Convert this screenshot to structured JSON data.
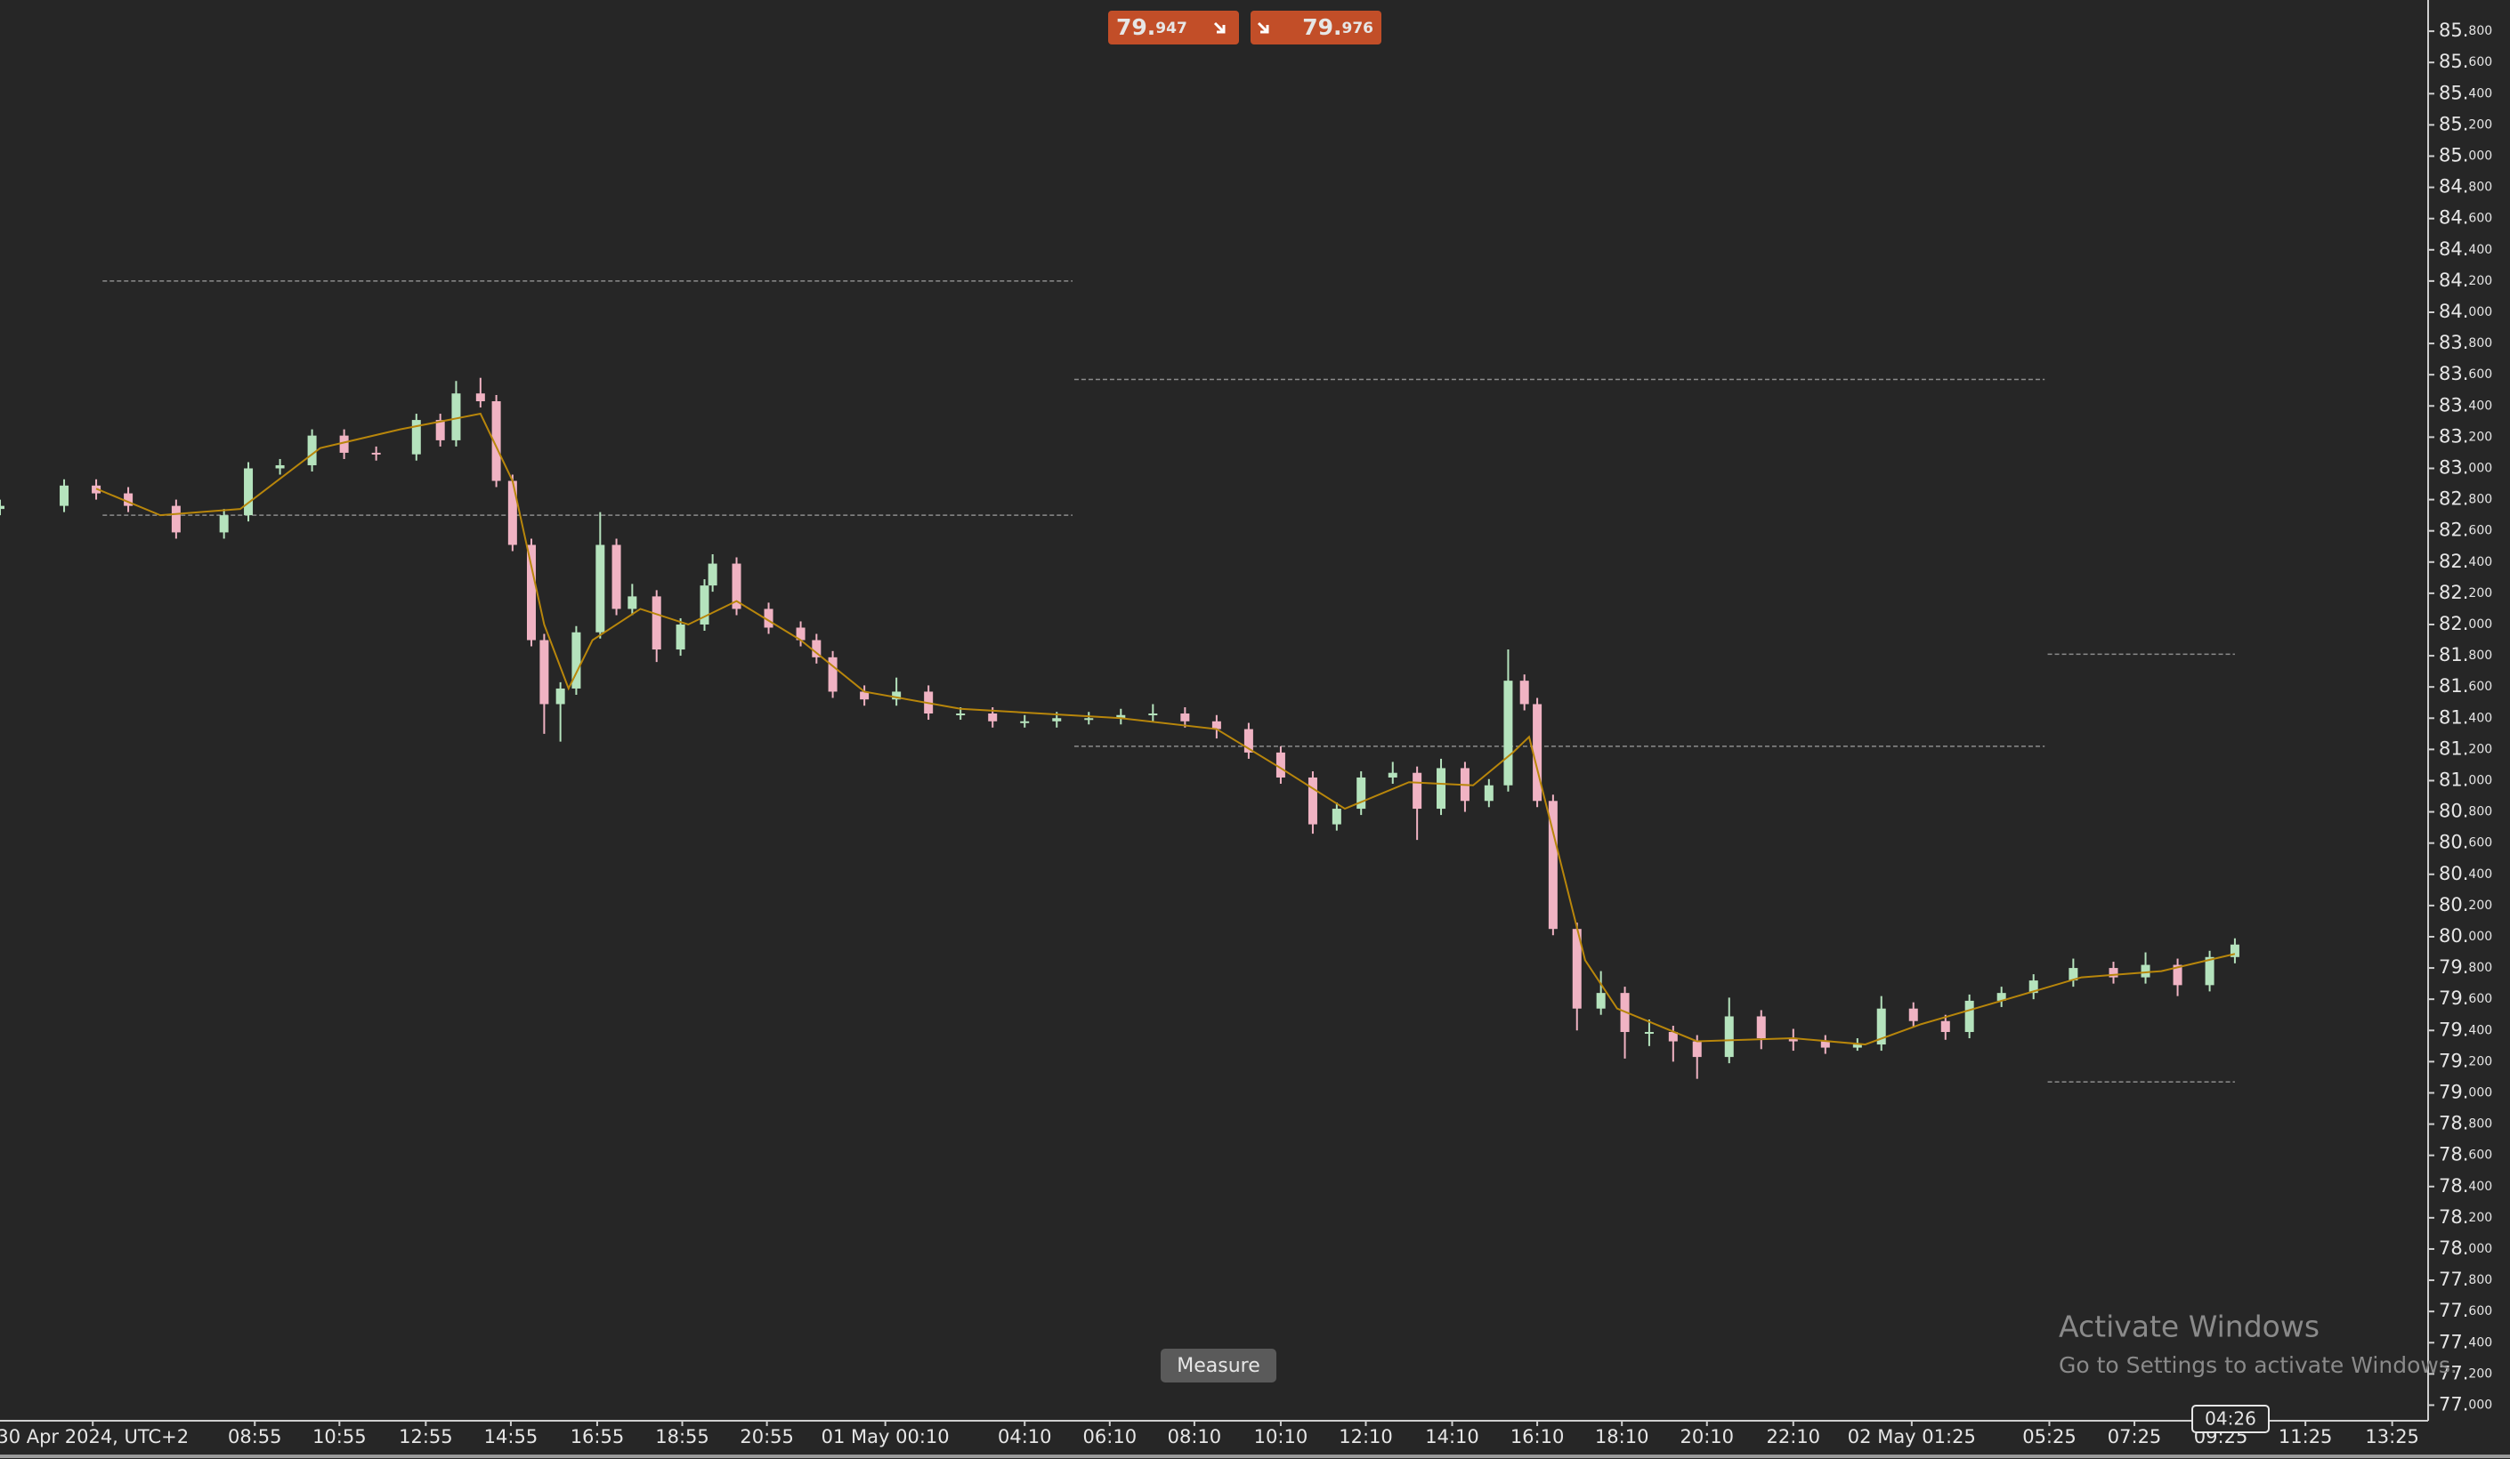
{
  "chart_data": {
    "type": "candlestick",
    "x": [
      0,
      1.5,
      2.25,
      3.0,
      4.12,
      5.24,
      5.81,
      6.55,
      7.3,
      8.05,
      8.8,
      9.74,
      10.3,
      10.67,
      11.24,
      11.61,
      11.99,
      12.43,
      12.73,
      13.11,
      13.48,
      14.04,
      14.42,
      14.79,
      15.36,
      15.92,
      16.48,
      16.67,
      17.23,
      17.98,
      18.73,
      19.1,
      19.48,
      20.22,
      20.97,
      21.72,
      22.47,
      23.22,
      23.97,
      24.72,
      25.47,
      26.22,
      26.97,
      27.72,
      28.46,
      29.21,
      29.96,
      30.71,
      31.27,
      31.84,
      32.58,
      33.15,
      33.71,
      34.27,
      34.83,
      35.28,
      35.66,
      35.96,
      36.33,
      36.89,
      37.45,
      38.01,
      38.58,
      39.14,
      39.7,
      40.45,
      41.2,
      41.95,
      42.7,
      43.45,
      44.01,
      44.76,
      45.51,
      46.07,
      46.82,
      47.57,
      48.5,
      49.44,
      50.19,
      50.94,
      51.69,
      52.28
    ],
    "open": [
      82.74,
      82.76,
      82.89,
      82.84,
      82.76,
      82.59,
      82.7,
      83.0,
      83.02,
      83.21,
      83.1,
      83.09,
      83.31,
      83.18,
      83.48,
      83.43,
      82.92,
      82.51,
      81.9,
      81.49,
      81.59,
      81.95,
      82.51,
      82.1,
      82.18,
      81.84,
      82.0,
      82.25,
      82.39,
      82.1,
      81.98,
      81.9,
      81.79,
      81.57,
      81.52,
      81.57,
      81.43,
      81.43,
      81.38,
      81.38,
      81.4,
      81.4,
      81.42,
      81.43,
      81.38,
      81.33,
      81.18,
      81.02,
      80.72,
      80.82,
      81.02,
      81.05,
      80.82,
      81.08,
      80.87,
      80.97,
      81.64,
      81.49,
      80.87,
      80.05,
      79.54,
      79.64,
      79.39,
      79.39,
      79.33,
      79.23,
      79.49,
      79.35,
      79.33,
      79.29,
      79.31,
      79.54,
      79.46,
      79.39,
      79.59,
      79.64,
      79.72,
      79.8,
      79.74,
      79.82,
      79.69,
      79.87
    ],
    "high": [
      82.8,
      82.93,
      82.93,
      82.88,
      82.8,
      82.74,
      83.04,
      83.06,
      83.25,
      83.25,
      83.14,
      83.35,
      83.35,
      83.56,
      83.58,
      83.47,
      82.96,
      82.55,
      81.94,
      81.63,
      81.99,
      82.72,
      82.55,
      82.26,
      82.22,
      82.04,
      82.29,
      82.45,
      82.43,
      82.14,
      82.02,
      81.94,
      81.83,
      81.61,
      81.66,
      81.61,
      81.47,
      81.47,
      81.42,
      81.44,
      81.44,
      81.46,
      81.49,
      81.47,
      81.42,
      81.37,
      81.22,
      81.06,
      80.86,
      81.06,
      81.12,
      81.09,
      81.14,
      81.12,
      81.01,
      81.84,
      81.68,
      81.53,
      80.91,
      80.09,
      79.78,
      79.68,
      79.47,
      79.43,
      79.37,
      79.61,
      79.53,
      79.41,
      79.37,
      79.35,
      79.62,
      79.58,
      79.5,
      79.63,
      79.68,
      79.76,
      79.86,
      79.84,
      79.9,
      79.86,
      79.91,
      79.99
    ],
    "low": [
      82.7,
      82.72,
      82.8,
      82.72,
      82.55,
      82.55,
      82.66,
      82.96,
      82.98,
      83.06,
      83.05,
      83.05,
      83.14,
      83.14,
      83.39,
      82.88,
      82.47,
      81.86,
      81.3,
      81.25,
      81.55,
      81.91,
      82.06,
      82.06,
      81.76,
      81.8,
      81.96,
      82.21,
      82.06,
      81.94,
      81.86,
      81.75,
      81.53,
      81.48,
      81.48,
      81.39,
      81.39,
      81.34,
      81.34,
      81.34,
      81.36,
      81.36,
      81.38,
      81.34,
      81.27,
      81.14,
      80.98,
      80.66,
      80.68,
      80.78,
      80.98,
      80.62,
      80.78,
      80.8,
      80.83,
      80.93,
      81.45,
      80.83,
      80.01,
      79.4,
      79.5,
      79.22,
      79.3,
      79.2,
      79.09,
      79.19,
      79.28,
      79.27,
      79.25,
      79.27,
      79.27,
      79.42,
      79.34,
      79.35,
      79.55,
      79.6,
      79.68,
      79.7,
      79.7,
      79.62,
      79.65,
      79.83
    ],
    "close": [
      82.76,
      82.89,
      82.84,
      82.76,
      82.59,
      82.7,
      83.0,
      83.02,
      83.21,
      83.1,
      83.09,
      83.31,
      83.18,
      83.48,
      83.43,
      82.92,
      82.51,
      81.9,
      81.49,
      81.59,
      81.95,
      82.51,
      82.1,
      82.18,
      81.84,
      82.0,
      82.25,
      82.39,
      82.1,
      81.98,
      81.9,
      81.79,
      81.57,
      81.52,
      81.57,
      81.43,
      81.43,
      81.38,
      81.38,
      81.4,
      81.4,
      81.42,
      81.43,
      81.38,
      81.33,
      81.18,
      81.02,
      80.72,
      80.82,
      81.02,
      81.05,
      80.82,
      81.08,
      80.87,
      80.97,
      81.64,
      81.49,
      80.87,
      80.05,
      79.54,
      79.64,
      79.39,
      79.39,
      79.33,
      79.23,
      79.49,
      79.35,
      79.33,
      79.29,
      79.31,
      79.54,
      79.46,
      79.39,
      79.59,
      79.64,
      79.72,
      79.8,
      79.74,
      79.82,
      79.69,
      79.87,
      79.95
    ],
    "up_color": "#b5e3bd",
    "down_color": "#f0b3c3",
    "ma": {
      "color": "#b8860b",
      "x": [
        2.25,
        3.75,
        5.62,
        7.49,
        9.36,
        11.24,
        11.99,
        12.73,
        13.3,
        13.86,
        14.98,
        16.1,
        17.23,
        18.73,
        20.22,
        22.47,
        26.22,
        28.46,
        29.96,
        31.46,
        32.96,
        34.46,
        35.39,
        35.77,
        36.33,
        37.08,
        37.83,
        39.7,
        41.95,
        43.63,
        44.94,
        46.82,
        48.69,
        50.56,
        52.28
      ],
      "values": [
        82.87,
        82.7,
        82.74,
        83.13,
        83.25,
        83.35,
        82.92,
        82.0,
        81.59,
        81.9,
        82.1,
        82.0,
        82.15,
        81.9,
        81.57,
        81.46,
        81.4,
        81.33,
        81.08,
        80.82,
        80.99,
        80.97,
        81.18,
        81.28,
        80.67,
        79.85,
        79.54,
        79.33,
        79.35,
        79.31,
        79.44,
        79.59,
        79.74,
        79.78,
        79.89
      ]
    },
    "levels": [
      {
        "value": 84.2,
        "x": [
          2.4,
          25.09
        ]
      },
      {
        "value": 82.7,
        "x": [
          2.4,
          25.09
        ]
      },
      {
        "value": 83.57,
        "x": [
          25.13,
          47.83
        ]
      },
      {
        "value": 81.22,
        "x": [
          25.13,
          47.83
        ]
      },
      {
        "value": 81.81,
        "x": [
          47.9,
          52.28
        ]
      },
      {
        "value": 79.07,
        "x": [
          47.9,
          52.28
        ]
      }
    ],
    "xlim": [
      0,
      56.8
    ],
    "ylim": [
      76.9,
      86.0
    ],
    "xticks": [
      {
        "value": 2.17,
        "label": "30 Apr 2024, UTC+2"
      },
      {
        "value": 5.96,
        "label": "08:55"
      },
      {
        "value": 7.94,
        "label": "10:55"
      },
      {
        "value": 9.96,
        "label": "12:55"
      },
      {
        "value": 11.95,
        "label": "14:55"
      },
      {
        "value": 13.97,
        "label": "16:55"
      },
      {
        "value": 15.96,
        "label": "18:55"
      },
      {
        "value": 17.94,
        "label": "20:55"
      },
      {
        "value": 20.71,
        "label": "01 May 00:10"
      },
      {
        "value": 23.97,
        "label": "04:10"
      },
      {
        "value": 25.96,
        "label": "06:10"
      },
      {
        "value": 27.94,
        "label": "08:10"
      },
      {
        "value": 29.96,
        "label": "10:10"
      },
      {
        "value": 31.95,
        "label": "12:10"
      },
      {
        "value": 33.97,
        "label": "14:10"
      },
      {
        "value": 35.96,
        "label": "16:10"
      },
      {
        "value": 37.94,
        "label": "18:10"
      },
      {
        "value": 39.93,
        "label": "20:10"
      },
      {
        "value": 41.95,
        "label": "22:10"
      },
      {
        "value": 44.72,
        "label": "02 May 01:25"
      },
      {
        "value": 47.94,
        "label": "05:25"
      },
      {
        "value": 49.93,
        "label": "07:25"
      },
      {
        "value": 51.95,
        "label": "09:25"
      },
      {
        "value": 53.93,
        "label": "11:25"
      },
      {
        "value": 55.96,
        "label": "13:25"
      }
    ],
    "yticks": [
      {
        "value": 77.0,
        "label": "77.000"
      },
      {
        "value": 77.2,
        "label": "77.200"
      },
      {
        "value": 77.4,
        "label": "77.400"
      },
      {
        "value": 77.6,
        "label": "77.600"
      },
      {
        "value": 77.8,
        "label": "77.800"
      },
      {
        "value": 78.0,
        "label": "78.000"
      },
      {
        "value": 78.2,
        "label": "78.200"
      },
      {
        "value": 78.4,
        "label": "78.400"
      },
      {
        "value": 78.6,
        "label": "78.600"
      },
      {
        "value": 78.8,
        "label": "78.800"
      },
      {
        "value": 79.0,
        "label": "79.000"
      },
      {
        "value": 79.2,
        "label": "79.200"
      },
      {
        "value": 79.4,
        "label": "79.400"
      },
      {
        "value": 79.6,
        "label": "79.600"
      },
      {
        "value": 79.8,
        "label": "79.800"
      },
      {
        "value": 80.0,
        "label": "80.000"
      },
      {
        "value": 80.2,
        "label": "80.200"
      },
      {
        "value": 80.4,
        "label": "80.400"
      },
      {
        "value": 80.6,
        "label": "80.600"
      },
      {
        "value": 80.8,
        "label": "80.800"
      },
      {
        "value": 81.0,
        "label": "81.000"
      },
      {
        "value": 81.2,
        "label": "81.200"
      },
      {
        "value": 81.4,
        "label": "81.400"
      },
      {
        "value": 81.6,
        "label": "81.600"
      },
      {
        "value": 81.8,
        "label": "81.800"
      },
      {
        "value": 82.0,
        "label": "82.000"
      },
      {
        "value": 82.2,
        "label": "82.200"
      },
      {
        "value": 82.4,
        "label": "82.400"
      },
      {
        "value": 82.6,
        "label": "82.600"
      },
      {
        "value": 82.8,
        "label": "82.800"
      },
      {
        "value": 83.0,
        "label": "83.000"
      },
      {
        "value": 83.2,
        "label": "83.200"
      },
      {
        "value": 83.4,
        "label": "83.400"
      },
      {
        "value": 83.6,
        "label": "83.600"
      },
      {
        "value": 83.8,
        "label": "83.800"
      },
      {
        "value": 84.0,
        "label": "84.000"
      },
      {
        "value": 84.2,
        "label": "84.200"
      },
      {
        "value": 84.4,
        "label": "84.400"
      },
      {
        "value": 84.6,
        "label": "84.600"
      },
      {
        "value": 84.8,
        "label": "84.800"
      },
      {
        "value": 85.0,
        "label": "85.000"
      },
      {
        "value": 85.2,
        "label": "85.200"
      },
      {
        "value": 85.4,
        "label": "85.400"
      },
      {
        "value": 85.6,
        "label": "85.600"
      },
      {
        "value": 85.8,
        "label": "85.800"
      }
    ]
  },
  "sell_price": 79.947,
  "buy_price": 79.976,
  "measure_button": "Measure",
  "cursor_time": "04:26",
  "watermark": {
    "title": "Activate Windows",
    "subtitle": "Go to Settings to activate Windows."
  }
}
